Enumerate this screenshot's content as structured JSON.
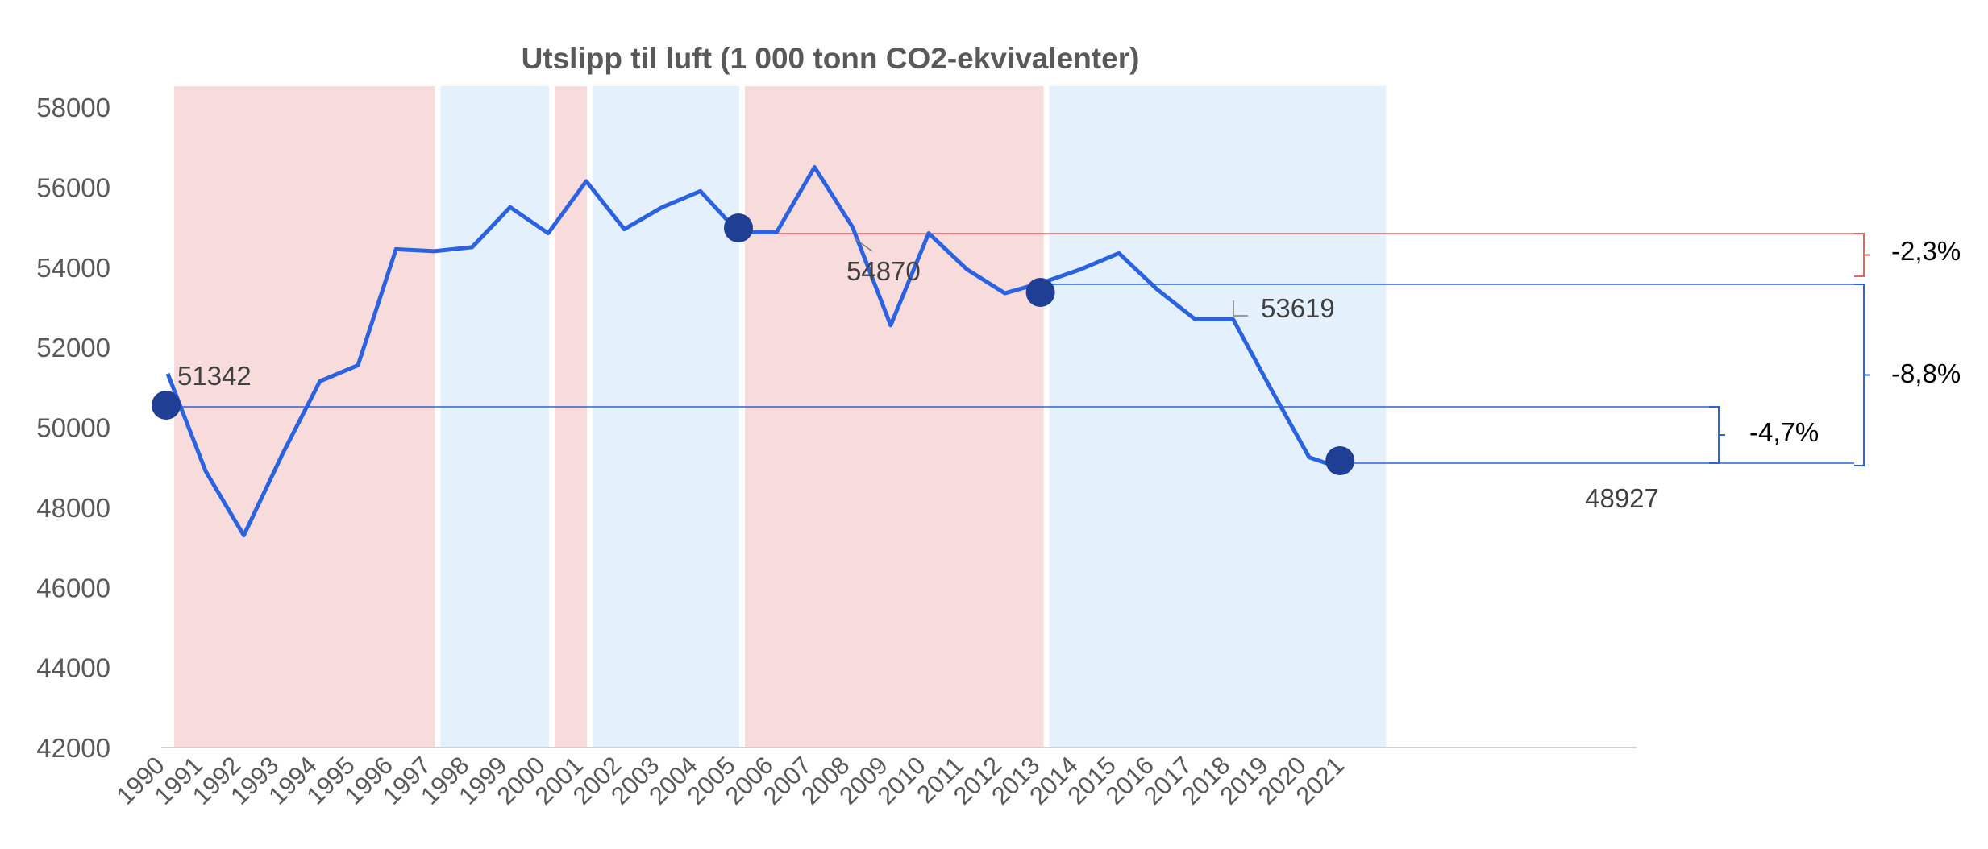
{
  "chart_data": {
    "type": "line",
    "title": "Utslipp til luft (1 000 tonn CO2-ekvivalenter)",
    "xlabel": "",
    "ylabel": "",
    "ylim": [
      42000,
      58000
    ],
    "y_ticks": [
      42000,
      44000,
      46000,
      48000,
      50000,
      52000,
      54000,
      56000,
      58000
    ],
    "categories": [
      "1990",
      "1991",
      "1992",
      "1993",
      "1994",
      "1995",
      "1996",
      "1997",
      "1998",
      "1999",
      "2000",
      "2001",
      "2002",
      "2003",
      "2004",
      "2005",
      "2006",
      "2007",
      "2008",
      "2009",
      "2010",
      "2011",
      "2012",
      "2013",
      "2014",
      "2015",
      "2016",
      "2017",
      "2018",
      "2019",
      "2020",
      "2021"
    ],
    "series": [
      {
        "color": "#2a62e0",
        "values": [
          51342,
          48900,
          47300,
          49300,
          51150,
          51550,
          54450,
          54400,
          54500,
          55500,
          54850,
          56150,
          54950,
          55500,
          55900,
          54870,
          54870,
          56500,
          55000,
          52550,
          54850,
          53950,
          53350,
          53619,
          53950,
          54350,
          53450,
          52700,
          52700,
          50950,
          49250,
          48927
        ]
      }
    ],
    "shaded_periods": [
      {
        "start": "1990",
        "end": "1997",
        "color": "#f8dcdc"
      },
      {
        "start": "1997",
        "end": "2000",
        "color": "#e4f1fd"
      },
      {
        "start": "2000",
        "end": "2001",
        "color": "#f8dcdc"
      },
      {
        "start": "2001",
        "end": "2005",
        "color": "#e4f1fd"
      },
      {
        "start": "2005",
        "end": "2013",
        "color": "#f8dcdc"
      },
      {
        "start": "2013",
        "end": "2022",
        "color": "#e4f1fd"
      }
    ],
    "highlighted_points": [
      {
        "x": "1990",
        "value": "51342"
      },
      {
        "x": "2005",
        "value": "54870"
      },
      {
        "x": "2013",
        "value": "53619"
      },
      {
        "x": "2021",
        "value": "48927"
      }
    ],
    "comparisons": [
      {
        "from": "2005",
        "to": "2013",
        "label": "-2,3%",
        "color": "#e8645a"
      },
      {
        "from": "1990",
        "to": "2021",
        "label": "-4,7%",
        "color": "#2a62e0"
      },
      {
        "from": "2013",
        "to": "2021",
        "label": "-8,8%",
        "color": "#2a62e0"
      }
    ],
    "grid": false,
    "legend": "none"
  }
}
